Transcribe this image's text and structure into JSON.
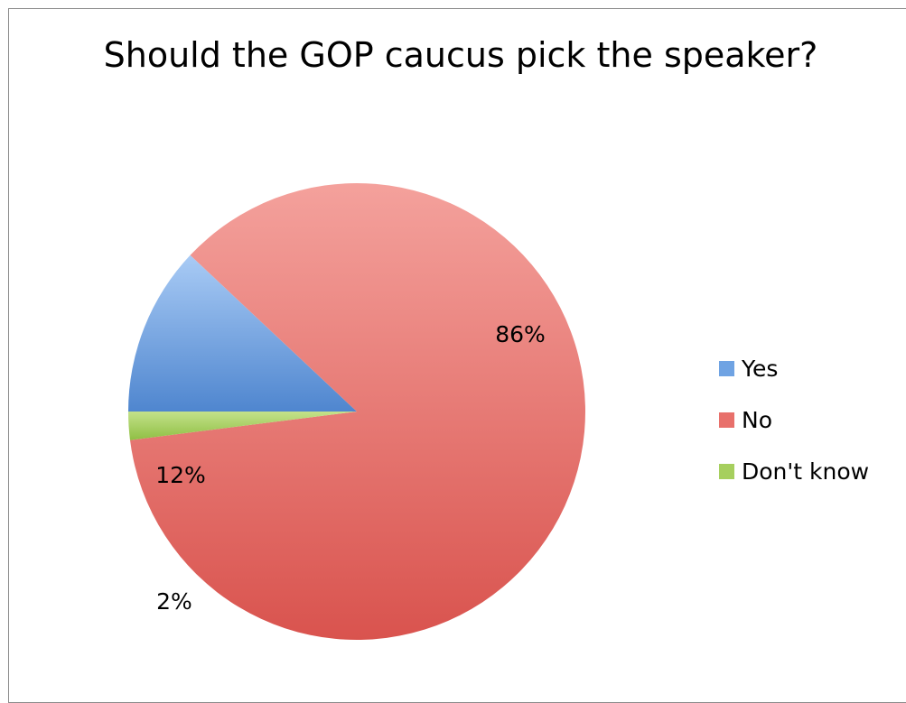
{
  "chart_data": {
    "type": "pie",
    "title": "Should the GOP caucus pick the speaker?",
    "slices": [
      {
        "label": "Yes",
        "value": 12,
        "display": "12%",
        "color": "#6fa3e3",
        "color_light": "#a9cbf5",
        "color_dark": "#4f86cf"
      },
      {
        "label": "No",
        "value": 86,
        "display": "86%",
        "color": "#e8706b",
        "color_light": "#f4a19c",
        "color_dark": "#d9534e"
      },
      {
        "label": "Don't know",
        "value": 2,
        "display": "2%",
        "color": "#a6cf5e",
        "color_light": "#c4e28a",
        "color_dark": "#8fbf44"
      }
    ],
    "legend_position": "right"
  }
}
